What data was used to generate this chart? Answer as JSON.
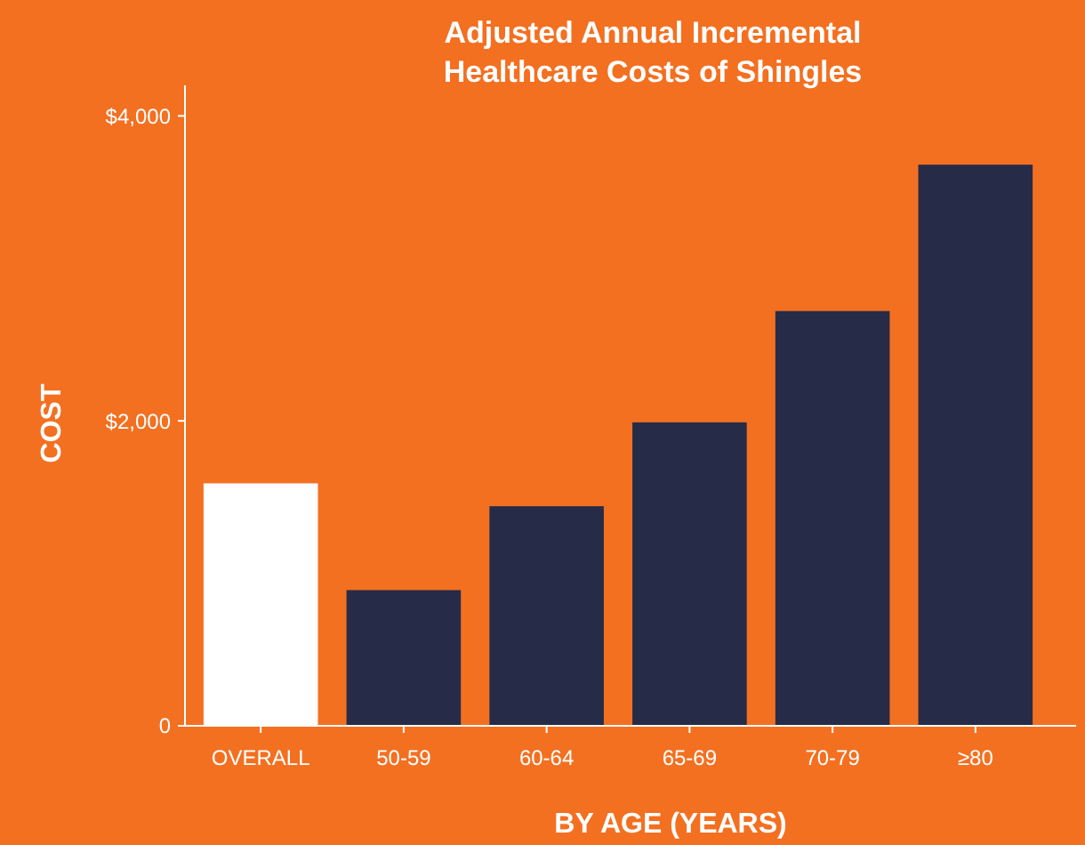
{
  "chart_data": {
    "type": "bar",
    "title": "Adjusted Annual Incremental Healthcare Costs of Shingles",
    "xlabel": "BY AGE (YEARS)",
    "ylabel": "COST",
    "categories": [
      "OVERALL",
      "50-59",
      "60-64",
      "65-69",
      "70-79",
      "≥80"
    ],
    "values": [
      1590,
      890,
      1440,
      1990,
      2720,
      3680
    ],
    "colors": [
      "#ffffff",
      "#262c47",
      "#262c47",
      "#262c47",
      "#262c47",
      "#262c47"
    ],
    "ylim": [
      0,
      4200
    ],
    "yticks": [
      0,
      {
        "value": 2000,
        "label": "$2,000"
      },
      {
        "value": 4000,
        "label": "$4,000"
      }
    ],
    "grid": false
  }
}
